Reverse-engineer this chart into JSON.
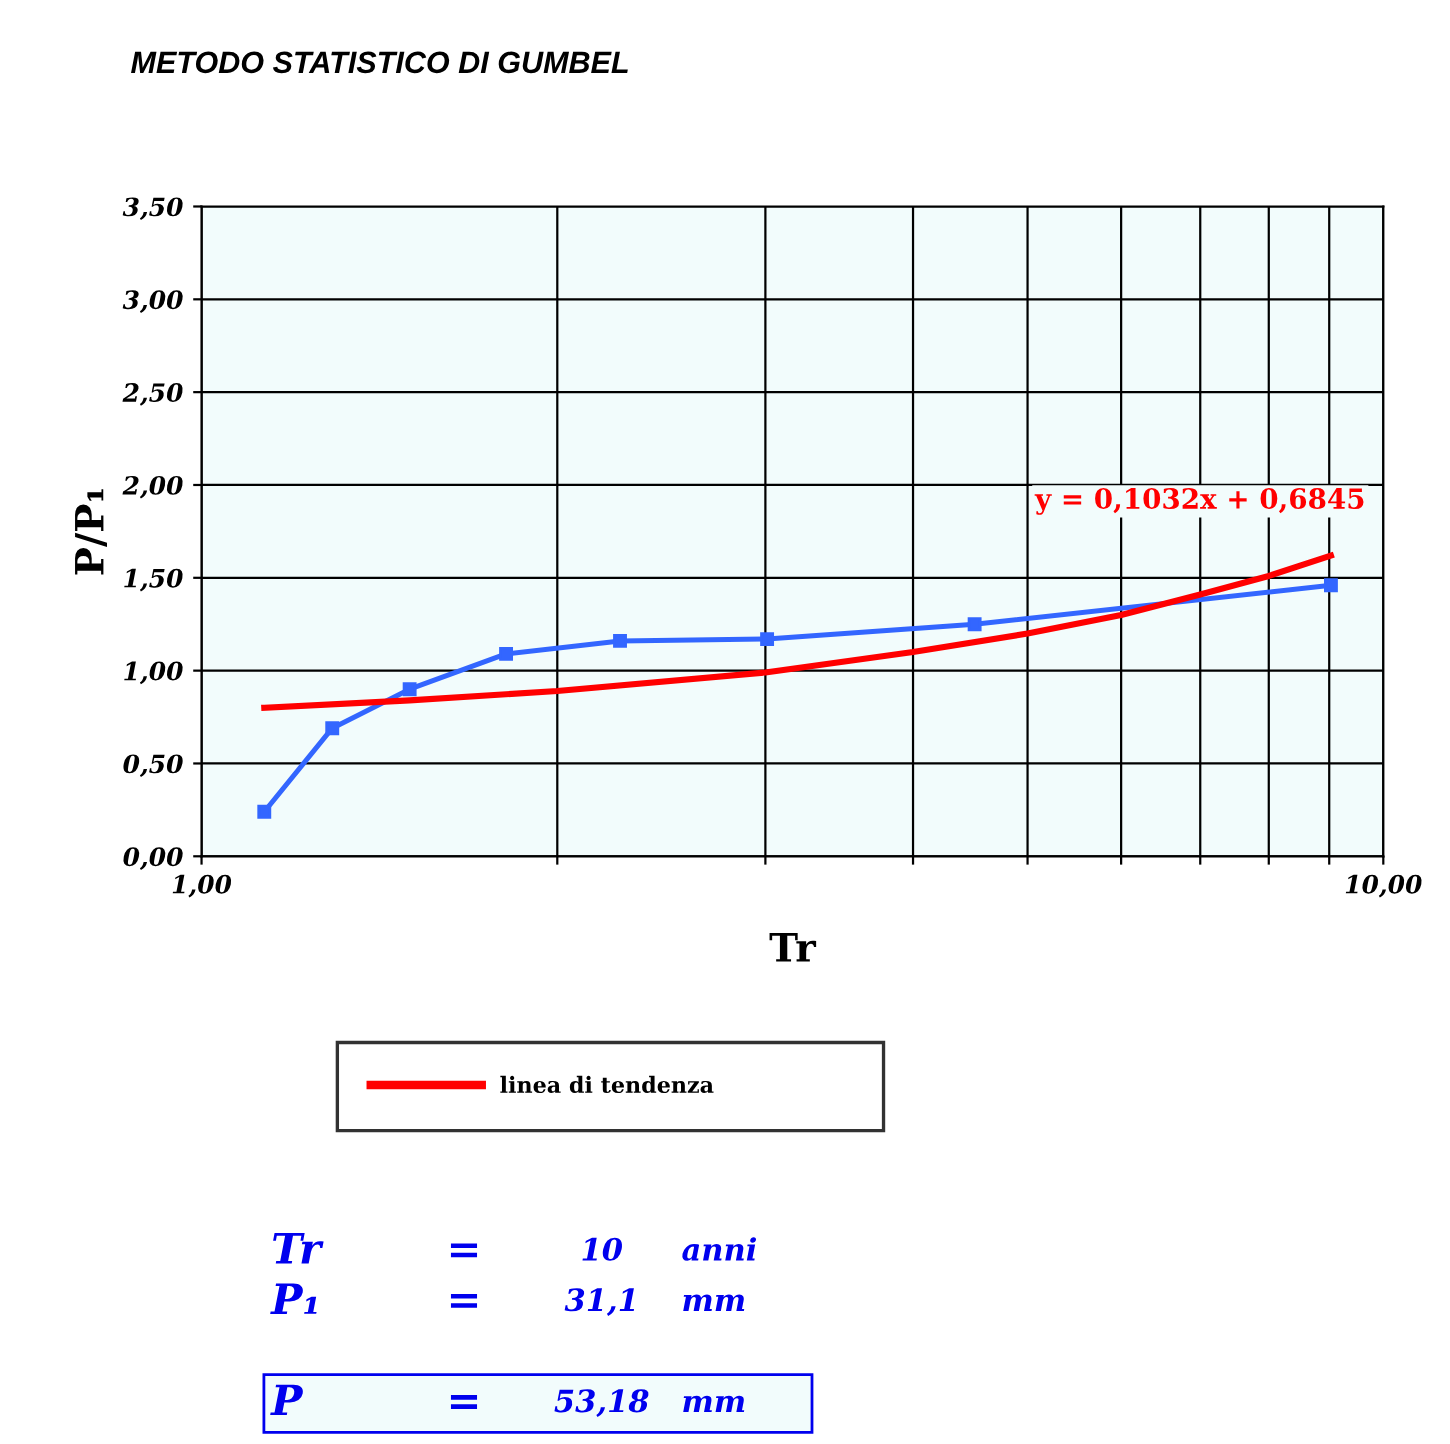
{
  "chart_data": {
    "type": "line",
    "title": "METODO STATISTICO DI GUMBEL",
    "xlabel": "Tr",
    "ylabel": "P/P₁",
    "log": "x",
    "xlim": [
      1,
      10
    ],
    "xticks": [
      {
        "value": 1,
        "label": "1,00"
      },
      {
        "value": 2,
        "label": null
      },
      {
        "value": 3,
        "label": null
      },
      {
        "value": 4,
        "label": null
      },
      {
        "value": 5,
        "label": null
      },
      {
        "value": 6,
        "label": null
      },
      {
        "value": 7,
        "label": null
      },
      {
        "value": 8,
        "label": null
      },
      {
        "value": 9,
        "label": null
      },
      {
        "value": 10,
        "label": "10,00"
      }
    ],
    "ylim": [
      0,
      3.5
    ],
    "yticks": [
      {
        "value": 0,
        "label": "0,00"
      },
      {
        "value": 0.5,
        "label": "0,50"
      },
      {
        "value": 1,
        "label": "1,00"
      },
      {
        "value": 1.5,
        "label": "1,50"
      },
      {
        "value": 2,
        "label": "2,00"
      },
      {
        "value": 2.5,
        "label": "2,50"
      },
      {
        "value": 3,
        "label": "3,00"
      },
      {
        "value": 3.5,
        "label": "3,50"
      }
    ],
    "grid": true,
    "legend": "bottom",
    "series": [
      {
        "color": "#3366ff",
        "marker": "square",
        "x": [
          1.13,
          1.29,
          1.5,
          1.81,
          2.26,
          3.01,
          4.51,
          9.03
        ],
        "values": [
          0.24,
          0.69,
          0.9,
          1.09,
          1.16,
          1.17,
          1.25,
          1.46
        ]
      },
      {
        "name": "linea di tendenza",
        "color": "#ff0000",
        "marker": "none",
        "x": [
          1.13,
          1.5,
          2,
          3,
          4,
          5,
          6,
          7,
          8,
          9.03
        ],
        "values": [
          0.8,
          0.84,
          0.89,
          0.99,
          1.1,
          1.2,
          1.3,
          1.41,
          1.51,
          1.62
        ]
      }
    ],
    "annotations": [
      "y = 0,1032x + 0,6845",
      "Tr",
      "=",
      "10",
      "anni",
      "P₁",
      "=",
      "31,1",
      "mm",
      "P",
      "=",
      "53,18",
      "mm"
    ]
  }
}
